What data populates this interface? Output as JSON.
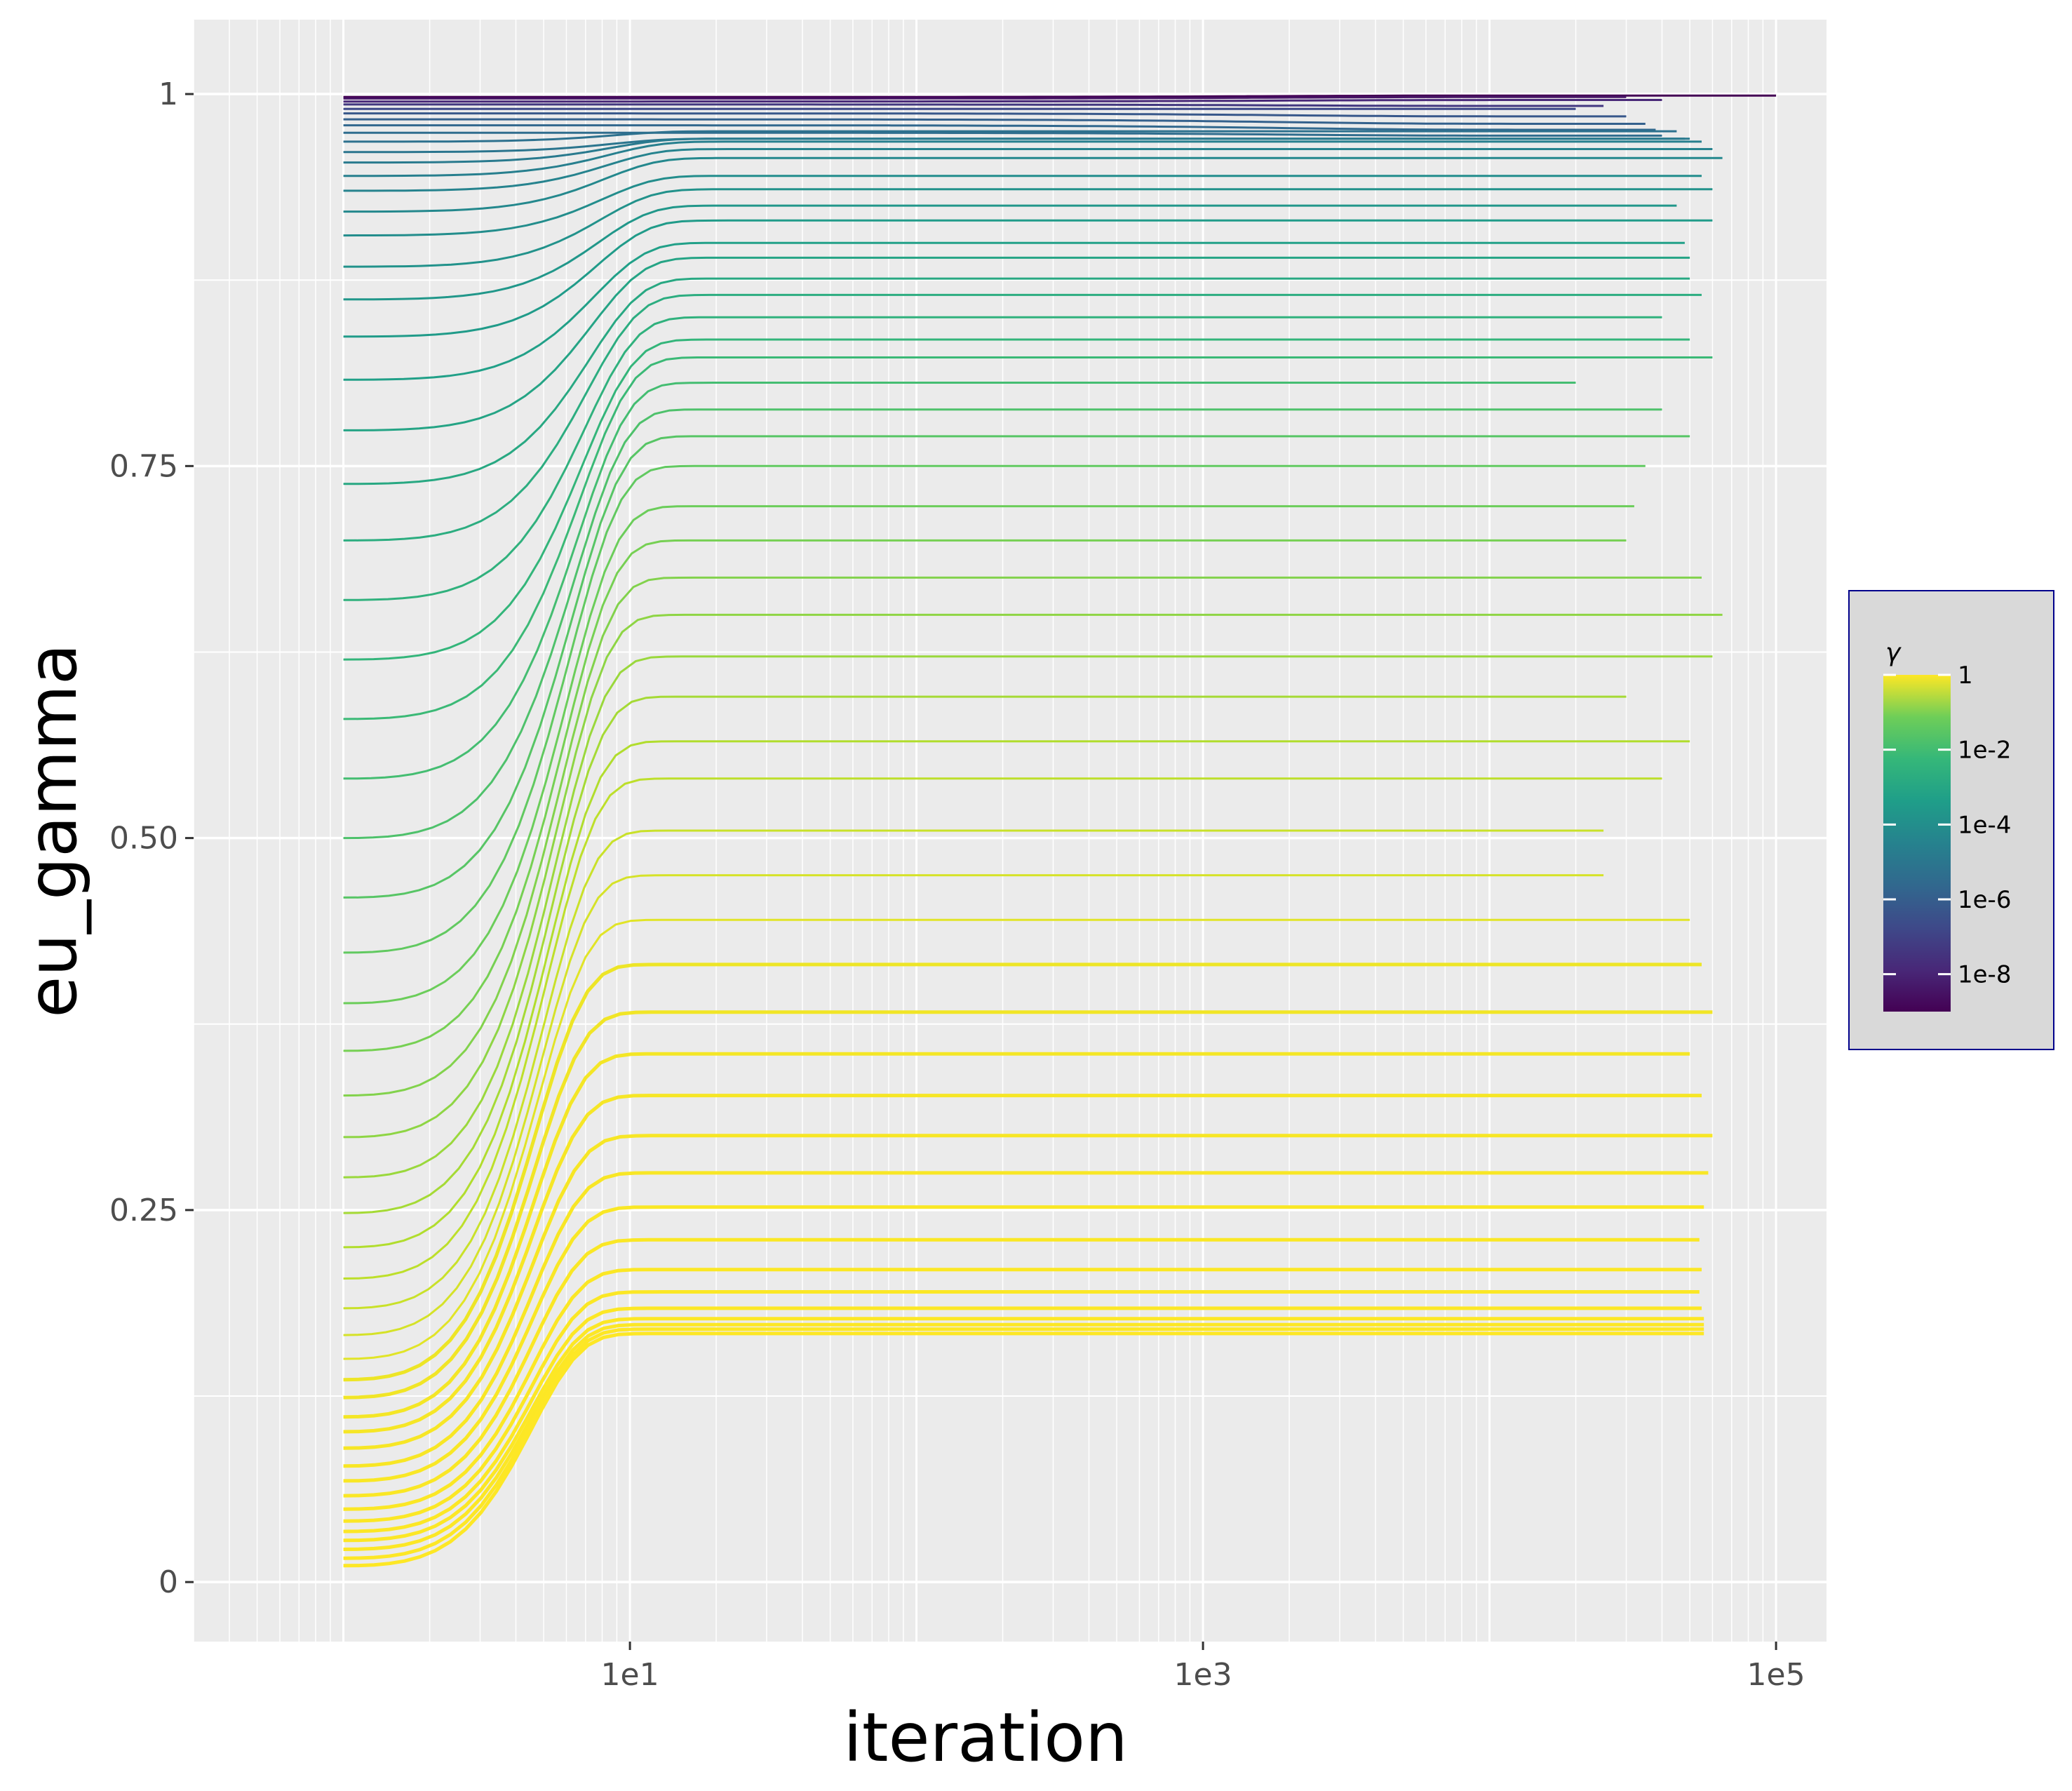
{
  "chart_data": {
    "type": "line",
    "xlabel": "iteration",
    "ylabel": "eu_gamma",
    "x_scale": "log10",
    "xlim": [
      0.3,
      150000
    ],
    "ylim": [
      -0.04,
      1.05
    ],
    "x_ticks": [
      {
        "value": 10,
        "label": "1e1"
      },
      {
        "value": 1000,
        "label": "1e3"
      },
      {
        "value": 100000,
        "label": "1e5"
      }
    ],
    "y_ticks": [
      {
        "value": 0,
        "label": "0"
      },
      {
        "value": 0.25,
        "label": "0.25"
      },
      {
        "value": 0.5,
        "label": "0.50"
      },
      {
        "value": 0.75,
        "label": "0.75"
      },
      {
        "value": 1,
        "label": "1"
      }
    ],
    "grid": true,
    "panel_background": "#ebebeb",
    "grid_color": "#ffffff",
    "legend": {
      "title": "γ",
      "position": "right",
      "scale": "log10",
      "range": [
        1e-09,
        1
      ],
      "breaks": [
        {
          "value": 1,
          "label": "1"
        },
        {
          "value": 0.01,
          "label": "1e-2"
        },
        {
          "value": 0.0001,
          "label": "1e-4"
        },
        {
          "value": 1e-06,
          "label": "1e-6"
        },
        {
          "value": 1e-08,
          "label": "1e-8"
        }
      ],
      "colormap": "viridis",
      "background": "#d9d9d9",
      "border": "#00008b"
    },
    "series_description": "one line per gamma value; low-gamma curves start near 1 and decay slightly; high-gamma curves rise from ~0.01 to a plateau",
    "series": [
      {
        "gamma": 1e-09,
        "y0": 0.998,
        "plateau": 0.999,
        "end_x": 100000
      },
      {
        "gamma": 3e-09,
        "y0": 0.997,
        "plateau": 0.998,
        "end_x": 30000
      },
      {
        "gamma": 1e-08,
        "y0": 0.995,
        "plateau": 0.996,
        "end_x": 40000
      },
      {
        "gamma": 3e-08,
        "y0": 0.993,
        "plateau": 0.992,
        "end_x": 25000
      },
      {
        "gamma": 1e-07,
        "y0": 0.99,
        "plateau": 0.99,
        "end_x": 20000
      },
      {
        "gamma": 3e-07,
        "y0": 0.987,
        "plateau": 0.985,
        "end_x": 30000
      },
      {
        "gamma": 6e-07,
        "y0": 0.983,
        "plateau": 0.98,
        "end_x": 35000
      },
      {
        "gamma": 1e-06,
        "y0": 0.979,
        "plateau": 0.976,
        "end_x": 38000
      },
      {
        "gamma": 1.5e-06,
        "y0": 0.974,
        "plateau": 0.972,
        "end_x": 40000
      },
      {
        "gamma": 2.2e-06,
        "y0": 0.968,
        "plateau": 0.975,
        "end_x": 45000
      },
      {
        "gamma": 3.3e-06,
        "y0": 0.961,
        "plateau": 0.97,
        "end_x": 48000
      },
      {
        "gamma": 5e-06,
        "y0": 0.954,
        "plateau": 0.97,
        "end_x": 50000
      },
      {
        "gamma": 7.5e-06,
        "y0": 0.945,
        "plateau": 0.968,
        "end_x": 55000
      },
      {
        "gamma": 1.1e-05,
        "y0": 0.935,
        "plateau": 0.963,
        "end_x": 60000
      },
      {
        "gamma": 1.7e-05,
        "y0": 0.921,
        "plateau": 0.957,
        "end_x": 65000
      },
      {
        "gamma": 2.5e-05,
        "y0": 0.905,
        "plateau": 0.945,
        "end_x": 55000
      },
      {
        "gamma": 3.7e-05,
        "y0": 0.884,
        "plateau": 0.936,
        "end_x": 60000
      },
      {
        "gamma": 5.5e-05,
        "y0": 0.862,
        "plateau": 0.925,
        "end_x": 45000
      },
      {
        "gamma": 8e-05,
        "y0": 0.837,
        "plateau": 0.915,
        "end_x": 60000
      },
      {
        "gamma": 0.00012,
        "y0": 0.808,
        "plateau": 0.9,
        "end_x": 48000
      },
      {
        "gamma": 0.00018,
        "y0": 0.774,
        "plateau": 0.89,
        "end_x": 50000
      },
      {
        "gamma": 0.00026,
        "y0": 0.738,
        "plateau": 0.876,
        "end_x": 50000
      },
      {
        "gamma": 0.00039,
        "y0": 0.7,
        "plateau": 0.865,
        "end_x": 55000
      },
      {
        "gamma": 0.00057,
        "y0": 0.66,
        "plateau": 0.85,
        "end_x": 40000
      },
      {
        "gamma": 0.00085,
        "y0": 0.62,
        "plateau": 0.835,
        "end_x": 50000
      },
      {
        "gamma": 0.00125,
        "y0": 0.58,
        "plateau": 0.823,
        "end_x": 60000
      },
      {
        "gamma": 0.0018,
        "y0": 0.54,
        "plateau": 0.806,
        "end_x": 20000
      },
      {
        "gamma": 0.0027,
        "y0": 0.5,
        "plateau": 0.788,
        "end_x": 40000
      },
      {
        "gamma": 0.004,
        "y0": 0.46,
        "plateau": 0.77,
        "end_x": 50000
      },
      {
        "gamma": 0.0059,
        "y0": 0.423,
        "plateau": 0.75,
        "end_x": 35000
      },
      {
        "gamma": 0.0087,
        "y0": 0.389,
        "plateau": 0.723,
        "end_x": 32000
      },
      {
        "gamma": 0.0128,
        "y0": 0.357,
        "plateau": 0.7,
        "end_x": 30000
      },
      {
        "gamma": 0.0189,
        "y0": 0.327,
        "plateau": 0.675,
        "end_x": 55000
      },
      {
        "gamma": 0.028,
        "y0": 0.299,
        "plateau": 0.65,
        "end_x": 65000
      },
      {
        "gamma": 0.041,
        "y0": 0.272,
        "plateau": 0.622,
        "end_x": 60000
      },
      {
        "gamma": 0.06,
        "y0": 0.248,
        "plateau": 0.595,
        "end_x": 30000
      },
      {
        "gamma": 0.089,
        "y0": 0.225,
        "plateau": 0.565,
        "end_x": 50000
      },
      {
        "gamma": 0.13,
        "y0": 0.204,
        "plateau": 0.54,
        "end_x": 40000
      },
      {
        "gamma": 0.19,
        "y0": 0.184,
        "plateau": 0.505,
        "end_x": 25000
      },
      {
        "gamma": 0.28,
        "y0": 0.166,
        "plateau": 0.475,
        "end_x": 25000
      },
      {
        "gamma": 0.41,
        "y0": 0.15,
        "plateau": 0.445,
        "end_x": 50000
      },
      {
        "gamma": 0.6,
        "y0": 0.136,
        "plateau": 0.415,
        "end_x": 55000
      },
      {
        "gamma": 0.68,
        "y0": 0.124,
        "plateau": 0.383,
        "end_x": 60000
      },
      {
        "gamma": 0.74,
        "y0": 0.111,
        "plateau": 0.355,
        "end_x": 50000
      },
      {
        "gamma": 0.79,
        "y0": 0.101,
        "plateau": 0.327,
        "end_x": 55000
      },
      {
        "gamma": 0.83,
        "y0": 0.09,
        "plateau": 0.3,
        "end_x": 60000
      },
      {
        "gamma": 0.86,
        "y0": 0.078,
        "plateau": 0.275,
        "end_x": 58000
      },
      {
        "gamma": 0.89,
        "y0": 0.068,
        "plateau": 0.252,
        "end_x": 56000
      },
      {
        "gamma": 0.91,
        "y0": 0.058,
        "plateau": 0.23,
        "end_x": 54000
      },
      {
        "gamma": 0.93,
        "y0": 0.049,
        "plateau": 0.21,
        "end_x": 55000
      },
      {
        "gamma": 0.945,
        "y0": 0.041,
        "plateau": 0.195,
        "end_x": 54000
      },
      {
        "gamma": 0.96,
        "y0": 0.034,
        "plateau": 0.184,
        "end_x": 55000
      },
      {
        "gamma": 0.97,
        "y0": 0.028,
        "plateau": 0.177,
        "end_x": 56000
      },
      {
        "gamma": 0.98,
        "y0": 0.022,
        "plateau": 0.173,
        "end_x": 56000
      },
      {
        "gamma": 0.99,
        "y0": 0.016,
        "plateau": 0.17,
        "end_x": 56000
      },
      {
        "gamma": 1,
        "y0": 0.011,
        "plateau": 0.167,
        "end_x": 56000
      }
    ]
  }
}
